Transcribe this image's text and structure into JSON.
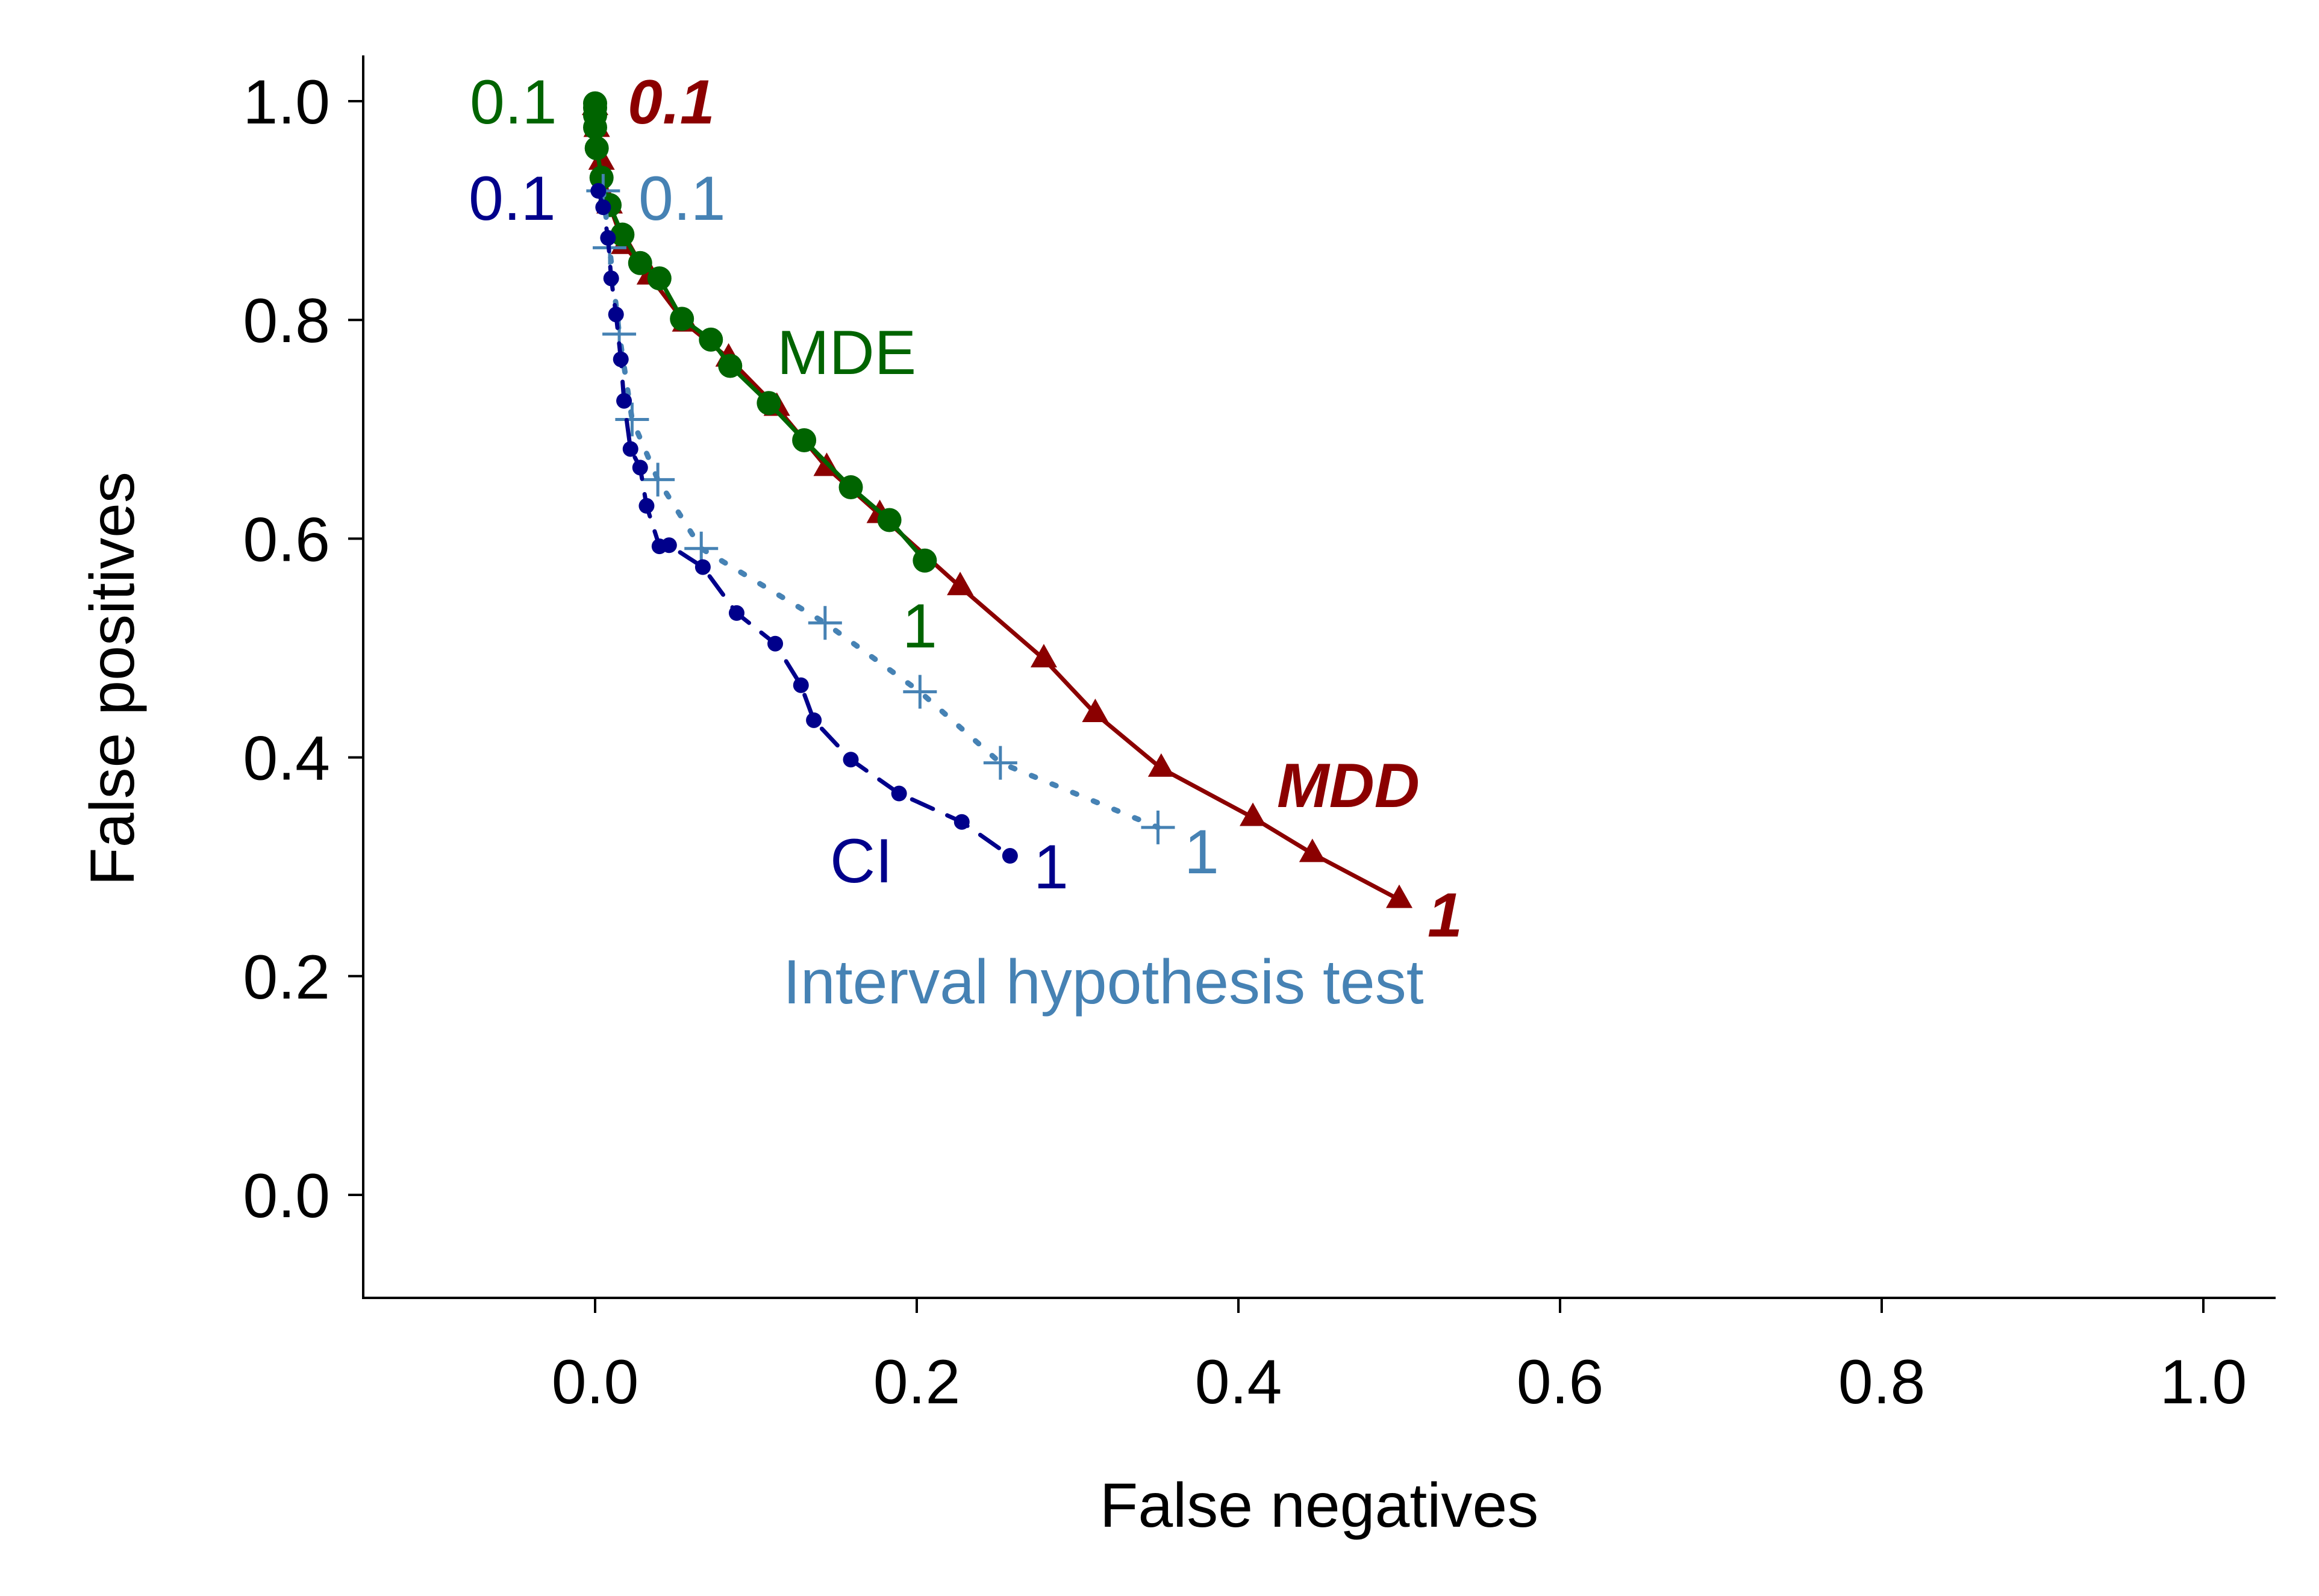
{
  "chart_data": {
    "type": "line",
    "title": "",
    "xlabel": "False negatives",
    "ylabel": "False positives",
    "xlim": [
      -0.145,
      1.045
    ],
    "ylim": [
      -0.092,
      1.042
    ],
    "xticks": [
      0.0,
      0.2,
      0.4,
      0.6,
      0.8,
      1.0
    ],
    "yticks": [
      0.0,
      0.2,
      0.4,
      0.6,
      0.8,
      1.0
    ],
    "xtick_labels": [
      "0.0",
      "0.2",
      "0.4",
      "0.6",
      "0.8",
      "1.0"
    ],
    "ytick_labels": [
      "0.0",
      "0.2",
      "0.4",
      "0.6",
      "0.8",
      "1.0"
    ],
    "grid": false,
    "legend": "none",
    "series": [
      {
        "name": "MDD",
        "color": "#8b0000",
        "line": "solid",
        "marker": "triangle",
        "x": [
          0.0,
          0.001,
          0.004,
          0.009,
          0.018,
          0.034,
          0.056,
          0.083,
          0.113,
          0.144,
          0.177,
          0.227,
          0.279,
          0.311,
          0.352,
          0.409,
          0.446,
          0.5
        ],
        "y": [
          0.995,
          0.975,
          0.945,
          0.905,
          0.868,
          0.84,
          0.797,
          0.765,
          0.72,
          0.665,
          0.622,
          0.556,
          0.49,
          0.44,
          0.39,
          0.345,
          0.312,
          0.27
        ],
        "start_label": "0.1",
        "end_label": "1"
      },
      {
        "name": "MDE",
        "color": "#006400",
        "line": "solid",
        "marker": "circle",
        "x": [
          0.0,
          0.0,
          0.0,
          0.0,
          0.001,
          0.004,
          0.009,
          0.017,
          0.028,
          0.04,
          0.054,
          0.072,
          0.084,
          0.108,
          0.13,
          0.159,
          0.183,
          0.205
        ],
        "y": [
          0.998,
          0.994,
          0.987,
          0.976,
          0.957,
          0.93,
          0.905,
          0.878,
          0.852,
          0.838,
          0.801,
          0.782,
          0.758,
          0.724,
          0.69,
          0.647,
          0.617,
          0.58
        ],
        "start_label": "0.1",
        "end_label": "1"
      },
      {
        "name": "CI",
        "color": "#00008b",
        "line": "dashed",
        "marker": "dot",
        "x": [
          0.002,
          0.005,
          0.008,
          0.01,
          0.013,
          0.016,
          0.018,
          0.022,
          0.028,
          0.032,
          0.04,
          0.046,
          0.067,
          0.088,
          0.112,
          0.128,
          0.136,
          0.159,
          0.189,
          0.228,
          0.258
        ],
        "y": [
          0.918,
          0.903,
          0.875,
          0.838,
          0.805,
          0.764,
          0.726,
          0.682,
          0.665,
          0.63,
          0.593,
          0.594,
          0.574,
          0.532,
          0.504,
          0.466,
          0.434,
          0.398,
          0.367,
          0.341,
          0.31
        ],
        "start_label": "0.1",
        "end_label": "1"
      },
      {
        "name": "Interval hypothesis test",
        "color": "#4682b4",
        "line": "dotted",
        "marker": "plus",
        "x": [
          0.005,
          0.009,
          0.015,
          0.023,
          0.039,
          0.066,
          0.143,
          0.202,
          0.252,
          0.35
        ],
        "y": [
          0.918,
          0.866,
          0.787,
          0.709,
          0.654,
          0.591,
          0.523,
          0.46,
          0.395,
          0.336
        ],
        "start_label": "0.1",
        "end_label": "1"
      }
    ]
  }
}
